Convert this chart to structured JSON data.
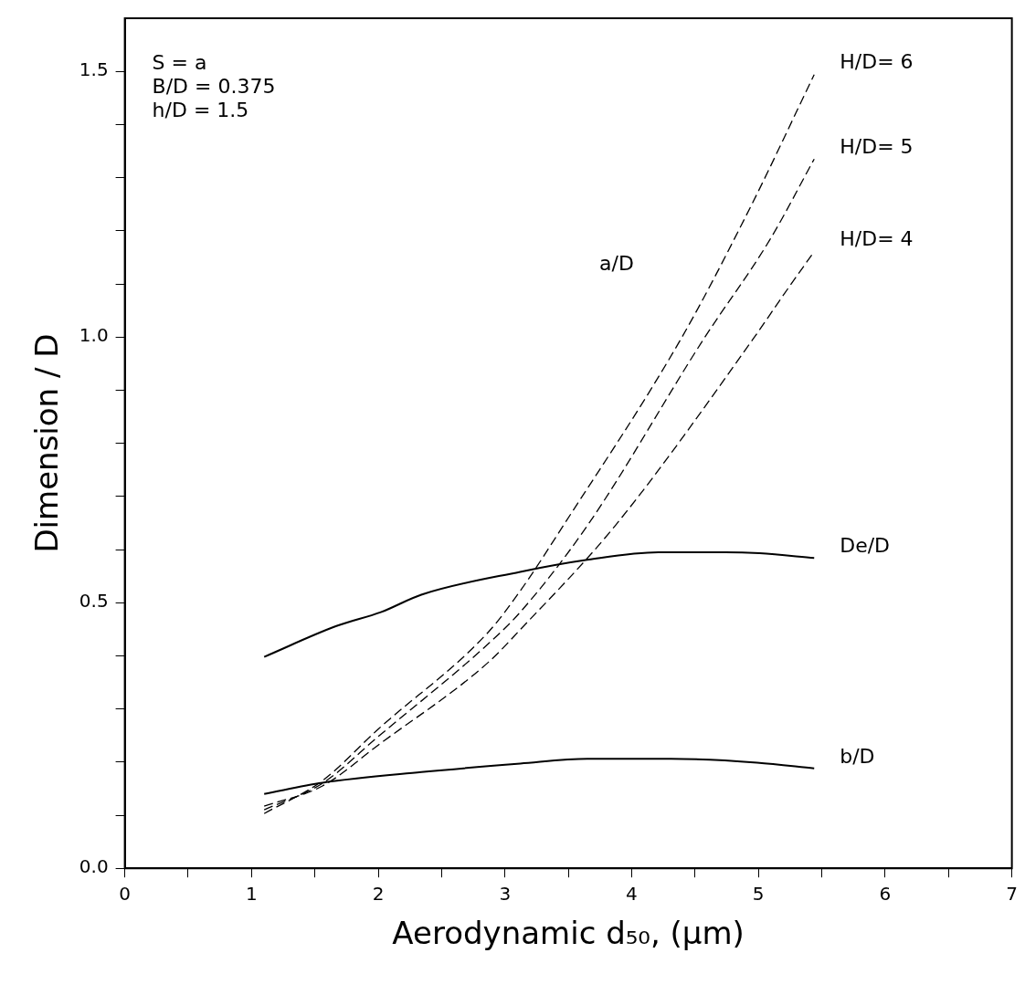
{
  "chart_data": {
    "type": "line",
    "xlabel": "Aerodynamic d₅₀, (μm)",
    "ylabel": "Dimension / D",
    "xlim": [
      0,
      7
    ],
    "ylim": [
      0,
      1.6
    ],
    "xticks": [
      0,
      {
        "value": 0.5,
        "label": null
      },
      1,
      {
        "value": 1.5,
        "label": null
      },
      2,
      {
        "value": 2.5,
        "label": null
      },
      3,
      {
        "value": 3.5,
        "label": null
      },
      4,
      {
        "value": 4.5,
        "label": null
      },
      5,
      {
        "value": 5.5,
        "label": null
      },
      6,
      {
        "value": 6.5,
        "label": null
      },
      7
    ],
    "yticks": [
      {
        "value": 0,
        "label": "0.0"
      },
      {
        "value": 0.1,
        "label": null
      },
      {
        "value": 0.2,
        "label": null
      },
      {
        "value": 0.3,
        "label": null
      },
      {
        "value": 0.4,
        "label": null
      },
      0.5,
      {
        "value": 0.6,
        "label": null
      },
      {
        "value": 0.7,
        "label": null
      },
      {
        "value": 0.8,
        "label": null
      },
      {
        "value": 0.9,
        "label": null
      },
      {
        "value": 1,
        "label": "1.0"
      },
      {
        "value": 1.1,
        "label": null
      },
      {
        "value": 1.2,
        "label": null
      },
      {
        "value": 1.3,
        "label": null
      },
      {
        "value": 1.4,
        "label": null
      },
      1.5
    ],
    "grid": false,
    "legend": false,
    "marker": "none",
    "series": [
      {
        "name": "H/D= 6",
        "color": "#000000",
        "line_style": "dashed",
        "x": [
          1.1,
          1.56,
          2.0,
          2.87,
          3.12,
          3.46,
          4.39,
          4.94,
          5.44
        ],
        "values": [
          0.103,
          0.165,
          0.262,
          0.445,
          0.522,
          0.645,
          0.997,
          1.246,
          1.494
        ]
      },
      {
        "name": "H/D= 5",
        "color": "#000000",
        "line_style": "dashed",
        "x": [
          1.1,
          1.56,
          2.0,
          2.87,
          3.12,
          3.65,
          4.57,
          5.09,
          5.44
        ],
        "values": [
          0.11,
          0.16,
          0.248,
          0.423,
          0.482,
          0.645,
          0.997,
          1.183,
          1.335
        ]
      },
      {
        "name": "H/D= 4",
        "color": "#000000",
        "line_style": "dashed",
        "x": [
          1.1,
          1.56,
          2.0,
          2.87,
          3.12,
          3.87,
          4.96,
          5.2,
          5.44
        ],
        "values": [
          0.117,
          0.155,
          0.232,
          0.388,
          0.449,
          0.645,
          0.997,
          1.08,
          1.161
        ]
      },
      {
        "name": "De/D",
        "color": "#000000",
        "line_style": "solid",
        "x": [
          1.1,
          1.67,
          2.02,
          2.34,
          3.12,
          3.66,
          4.21,
          4.74,
          5.01,
          5.44
        ],
        "values": [
          0.398,
          0.456,
          0.482,
          0.515,
          0.558,
          0.581,
          0.595,
          0.595,
          0.593,
          0.584
        ]
      },
      {
        "name": "b/D",
        "color": "#000000",
        "line_style": "solid",
        "x": [
          1.1,
          1.56,
          2.34,
          3.12,
          3.65,
          4.31,
          4.99,
          5.44
        ],
        "values": [
          0.14,
          0.161,
          0.181,
          0.197,
          0.206,
          0.206,
          0.199,
          0.188
        ]
      }
    ],
    "annotations": [
      "S = a",
      "B/D = 0.375",
      "h/D = 1.5",
      "a/D"
    ]
  }
}
